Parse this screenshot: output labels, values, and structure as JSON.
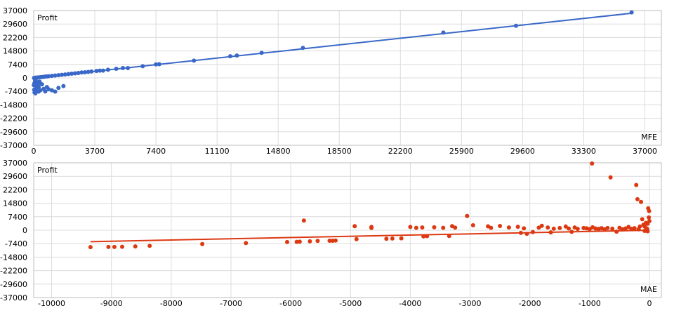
{
  "chart_data": [
    {
      "type": "scatter",
      "corner_label": "Profit",
      "axis_caption": "MFE",
      "grid": true,
      "xlim": [
        0,
        38000
      ],
      "ylim": [
        -37000,
        37000
      ],
      "xticks": [
        0,
        3700,
        7400,
        11100,
        14800,
        18500,
        22200,
        25900,
        29600,
        33300,
        37000
      ],
      "yticks": [
        37000,
        29600,
        22200,
        14800,
        7400,
        0,
        -7400,
        -14800,
        -22200,
        -29600,
        -37000
      ],
      "colors": {
        "points": "#3a68c8",
        "trend": "#3a68c8"
      },
      "trendline": {
        "from": [
          0,
          0
        ],
        "to": [
          36200,
          35500
        ]
      },
      "points": [
        [
          36200,
          36000
        ],
        [
          29200,
          28600
        ],
        [
          24800,
          24900
        ],
        [
          16300,
          16500
        ],
        [
          13800,
          13800
        ],
        [
          12300,
          12300
        ],
        [
          11900,
          11900
        ],
        [
          9700,
          9500
        ],
        [
          7600,
          7500
        ],
        [
          7400,
          7400
        ],
        [
          6600,
          6400
        ],
        [
          5700,
          5400
        ],
        [
          5400,
          5400
        ],
        [
          5000,
          5000
        ],
        [
          4500,
          4500
        ],
        [
          4200,
          4000
        ],
        [
          4000,
          4000
        ],
        [
          3800,
          3800
        ],
        [
          3500,
          3500
        ],
        [
          3300,
          3300
        ],
        [
          3100,
          3100
        ],
        [
          2900,
          3000
        ],
        [
          2700,
          2700
        ],
        [
          2500,
          2500
        ],
        [
          2300,
          2300
        ],
        [
          2100,
          2100
        ],
        [
          1900,
          1900
        ],
        [
          1700,
          1700
        ],
        [
          1500,
          1500
        ],
        [
          1300,
          1300
        ],
        [
          1100,
          1100
        ],
        [
          900,
          900
        ],
        [
          800,
          800
        ],
        [
          700,
          700
        ],
        [
          600,
          600
        ],
        [
          500,
          500
        ],
        [
          400,
          400
        ],
        [
          300,
          300
        ],
        [
          200,
          200
        ],
        [
          150,
          150
        ],
        [
          100,
          100
        ],
        [
          50,
          50
        ],
        [
          20,
          0
        ],
        [
          60,
          -500
        ],
        [
          120,
          -1200
        ],
        [
          80,
          -1800
        ],
        [
          150,
          -2500
        ],
        [
          200,
          -3200
        ],
        [
          100,
          -4000
        ],
        [
          250,
          -4800
        ],
        [
          180,
          -5500
        ],
        [
          300,
          -5000
        ],
        [
          120,
          -6000
        ],
        [
          400,
          -3000
        ],
        [
          350,
          -2000
        ],
        [
          220,
          -7400
        ],
        [
          100,
          -8500
        ],
        [
          50,
          -8000
        ],
        [
          400,
          -6800
        ],
        [
          300,
          -7500
        ],
        [
          500,
          -3500
        ],
        [
          600,
          -6000
        ],
        [
          800,
          -5000
        ],
        [
          900,
          -6200
        ],
        [
          1100,
          -6800
        ],
        [
          1300,
          -7500
        ],
        [
          1500,
          -5500
        ],
        [
          1800,
          -4500
        ],
        [
          700,
          -7400
        ],
        [
          40,
          -3000
        ],
        [
          30,
          -6500
        ],
        [
          10,
          -4000
        ]
      ]
    },
    {
      "type": "scatter",
      "corner_label": "Profit",
      "axis_caption": "MAE",
      "grid": true,
      "xlim": [
        -10300,
        200
      ],
      "ylim": [
        -37000,
        37000
      ],
      "xticks": [
        -10000,
        -9000,
        -8000,
        -7000,
        -6000,
        -5000,
        -4000,
        -3000,
        -2000,
        -1000,
        0
      ],
      "yticks": [
        37000,
        29600,
        22200,
        14800,
        7400,
        0,
        -7400,
        -14800,
        -22200,
        -29600,
        -37000
      ],
      "colors": {
        "points": "#dc3912",
        "trend": "#dc3912"
      },
      "trendline": {
        "from": [
          -9350,
          -6300
        ],
        "to": [
          0,
          0
        ]
      },
      "points": [
        [
          -9350,
          -9300
        ],
        [
          -9050,
          -9200
        ],
        [
          -8950,
          -9200
        ],
        [
          -8820,
          -9100
        ],
        [
          -8600,
          -8900
        ],
        [
          -8360,
          -8600
        ],
        [
          -7480,
          -7600
        ],
        [
          -6750,
          -7100
        ],
        [
          -6060,
          -6500
        ],
        [
          -5900,
          -6400
        ],
        [
          -5850,
          -6300
        ],
        [
          -5780,
          5300
        ],
        [
          -5680,
          -6100
        ],
        [
          -5550,
          -5900
        ],
        [
          -5350,
          -5800
        ],
        [
          -5300,
          -5800
        ],
        [
          -5250,
          -5700
        ],
        [
          -4930,
          2200
        ],
        [
          -4900,
          -4900
        ],
        [
          -4650,
          1800
        ],
        [
          -4650,
          1200
        ],
        [
          -4400,
          -4700
        ],
        [
          -4300,
          -4600
        ],
        [
          -4150,
          -4500
        ],
        [
          -4000,
          1800
        ],
        [
          -3900,
          1300
        ],
        [
          -3800,
          1500
        ],
        [
          -3780,
          -3400
        ],
        [
          -3720,
          -3300
        ],
        [
          -3600,
          1600
        ],
        [
          -3450,
          1300
        ],
        [
          -3350,
          -3200
        ],
        [
          -3300,
          2200
        ],
        [
          -3250,
          1400
        ],
        [
          -3050,
          7800
        ],
        [
          -2950,
          2700
        ],
        [
          -2700,
          2100
        ],
        [
          -2650,
          1300
        ],
        [
          -2500,
          2300
        ],
        [
          -2350,
          1500
        ],
        [
          -2200,
          1900
        ],
        [
          -2150,
          -1500
        ],
        [
          -2100,
          1000
        ],
        [
          -2050,
          -2000
        ],
        [
          -1950,
          -1000
        ],
        [
          -1850,
          1400
        ],
        [
          -1800,
          2400
        ],
        [
          -1700,
          1500
        ],
        [
          -1650,
          -1200
        ],
        [
          -1600,
          800
        ],
        [
          -1500,
          1200
        ],
        [
          -1400,
          2000
        ],
        [
          -1350,
          900
        ],
        [
          -1300,
          -900
        ],
        [
          -1250,
          1500
        ],
        [
          -1200,
          700
        ],
        [
          -1100,
          1200
        ],
        [
          -1050,
          1000
        ],
        [
          -1000,
          600
        ],
        [
          -960,
          37000
        ],
        [
          -950,
          1600
        ],
        [
          -900,
          900
        ],
        [
          -850,
          700
        ],
        [
          -800,
          1100
        ],
        [
          -750,
          500
        ],
        [
          -700,
          1200
        ],
        [
          -650,
          29000
        ],
        [
          -620,
          800
        ],
        [
          -550,
          -800
        ],
        [
          -500,
          1300
        ],
        [
          -450,
          500
        ],
        [
          -400,
          900
        ],
        [
          -350,
          1800
        ],
        [
          -300,
          700
        ],
        [
          -250,
          1100
        ],
        [
          -220,
          24800
        ],
        [
          -200,
          17000
        ],
        [
          -180,
          500
        ],
        [
          -160,
          2000
        ],
        [
          -140,
          15500
        ],
        [
          -120,
          6000
        ],
        [
          -100,
          3000
        ],
        [
          -80,
          2000
        ],
        [
          -60,
          4000
        ],
        [
          -50,
          1000
        ],
        [
          -40,
          800
        ],
        [
          -30,
          3500
        ],
        [
          -20,
          12000
        ],
        [
          -10,
          7000
        ],
        [
          -5,
          10500
        ],
        [
          0,
          5000
        ],
        [
          -30,
          -600
        ],
        [
          -80,
          -400
        ]
      ]
    }
  ]
}
